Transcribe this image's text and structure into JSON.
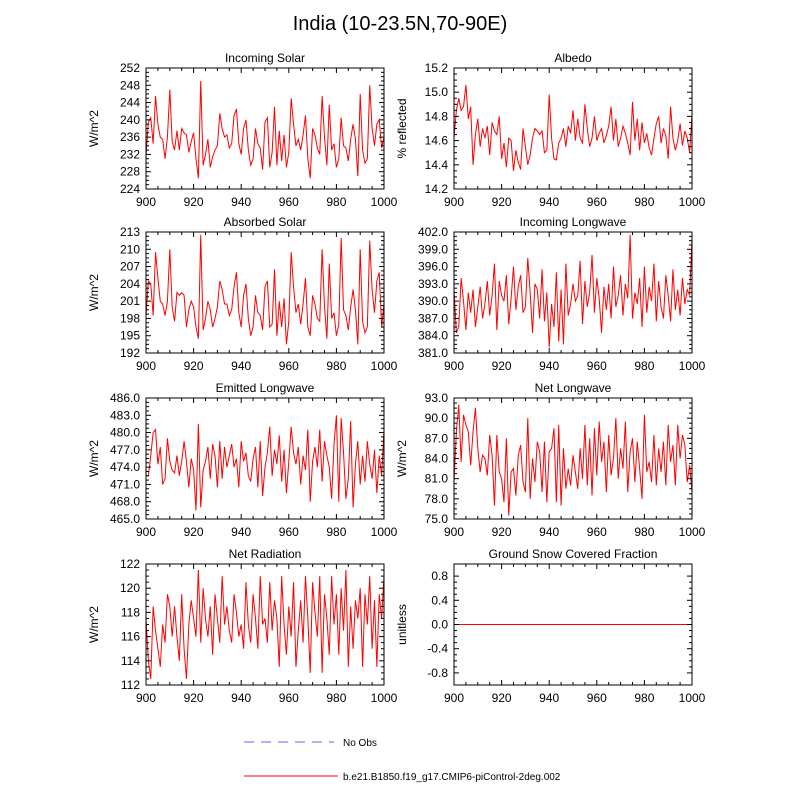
{
  "title": "India (10-23.5N,70-90E)",
  "legend": {
    "obs_label": "No Obs",
    "model_label": "b.e21.B1850.f19_g17.CMIP6-piControl-2deg.002",
    "obs_color": "#9999ee",
    "model_color": "#ff0000"
  },
  "chart_data": [
    {
      "type": "line",
      "title": "Incoming Solar",
      "ylabel": "W/m^2",
      "xlim": [
        900,
        1000
      ],
      "ylim": [
        224,
        252
      ],
      "yticks": [
        "224",
        "228",
        "232",
        "236",
        "240",
        "244",
        "248",
        "252"
      ],
      "xticks": [
        "900",
        "920",
        "940",
        "960",
        "980",
        "1000"
      ],
      "x_start": 900,
      "values": [
        231.5,
        239.5,
        240.5,
        234.5,
        245.5,
        239.0,
        236.0,
        235.5,
        231.0,
        236.0,
        247.0,
        235.0,
        233.0,
        237.5,
        233.0,
        238.0,
        237.0,
        236.5,
        232.5,
        235.0,
        237.0,
        231.0,
        226.5,
        249.0,
        229.5,
        232.0,
        235.5,
        229.0,
        231.5,
        233.0,
        234.0,
        241.5,
        238.0,
        236.0,
        236.5,
        233.5,
        234.5,
        241.0,
        242.5,
        234.5,
        232.0,
        238.0,
        240.0,
        233.0,
        229.5,
        231.0,
        238.0,
        234.5,
        233.5,
        228.5,
        239.5,
        240.5,
        229.0,
        232.5,
        243.0,
        229.5,
        237.5,
        230.5,
        236.5,
        229.0,
        232.5,
        245.0,
        239.0,
        234.0,
        235.5,
        233.0,
        236.5,
        241.0,
        231.0,
        226.5,
        238.0,
        236.5,
        233.5,
        232.0,
        245.5,
        236.0,
        229.5,
        243.5,
        233.0,
        234.5,
        229.0,
        231.0,
        240.5,
        234.0,
        233.5,
        230.5,
        235.5,
        239.0,
        235.5,
        227.0,
        246.0,
        233.0,
        230.0,
        231.0,
        248.0,
        238.0,
        234.0,
        239.0,
        240.0,
        233.5,
        236.0
      ]
    },
    {
      "type": "line",
      "title": "Albedo",
      "ylabel": "% reflected",
      "xlim": [
        900,
        1000
      ],
      "ylim": [
        14.2,
        15.2
      ],
      "yticks": [
        "14.2",
        "14.4",
        "14.6",
        "14.8",
        "15.0",
        "15.2"
      ],
      "xticks": [
        "900",
        "920",
        "940",
        "960",
        "980",
        "1000"
      ],
      "x_start": 900,
      "values": [
        14.62,
        14.85,
        14.95,
        14.85,
        14.88,
        15.06,
        14.78,
        14.88,
        14.4,
        14.65,
        14.78,
        14.55,
        14.7,
        14.62,
        14.72,
        14.48,
        14.75,
        14.68,
        14.65,
        14.8,
        14.45,
        14.58,
        14.38,
        14.62,
        14.6,
        14.35,
        14.52,
        14.42,
        14.36,
        14.7,
        14.55,
        14.4,
        14.48,
        14.62,
        14.7,
        14.68,
        14.65,
        14.68,
        14.5,
        14.52,
        14.98,
        14.62,
        14.45,
        14.44,
        14.58,
        14.62,
        14.7,
        14.55,
        14.72,
        14.66,
        14.85,
        14.6,
        14.78,
        14.62,
        14.58,
        14.9,
        14.7,
        14.55,
        14.62,
        14.8,
        14.6,
        14.66,
        14.7,
        14.58,
        14.64,
        14.72,
        14.88,
        14.6,
        14.78,
        14.55,
        14.62,
        14.72,
        14.66,
        14.58,
        14.48,
        14.92,
        14.6,
        14.78,
        14.52,
        14.75,
        14.58,
        14.66,
        14.54,
        14.48,
        14.62,
        14.74,
        14.8,
        14.58,
        14.7,
        14.64,
        14.45,
        14.88,
        14.62,
        14.52,
        14.6,
        14.74,
        14.56,
        14.68,
        14.62,
        14.5,
        14.82
      ]
    },
    {
      "type": "line",
      "title": "Absorbed Solar",
      "ylabel": "W/m^2",
      "xlim": [
        900,
        1000
      ],
      "ylim": [
        192,
        213
      ],
      "yticks": [
        "192",
        "195",
        "198",
        "201",
        "204",
        "207",
        "210",
        "213"
      ],
      "xticks": [
        "900",
        "920",
        "940",
        "960",
        "980",
        "1000"
      ],
      "x_start": 900,
      "values": [
        198.5,
        204.5,
        204.0,
        198.5,
        209.5,
        205.0,
        201.0,
        200.5,
        198.5,
        201.0,
        210.0,
        200.0,
        197.5,
        202.5,
        202.0,
        202.5,
        202.0,
        196.5,
        199.5,
        201.0,
        200.0,
        196.5,
        194.5,
        212.5,
        196.0,
        198.0,
        201.0,
        199.5,
        196.5,
        198.0,
        200.0,
        204.5,
        203.0,
        200.5,
        200.5,
        198.5,
        199.5,
        203.5,
        206.0,
        199.0,
        196.5,
        202.0,
        204.0,
        198.0,
        195.0,
        196.5,
        202.0,
        199.0,
        198.5,
        196.0,
        203.5,
        204.5,
        196.5,
        197.0,
        206.5,
        195.0,
        201.0,
        196.5,
        201.5,
        193.5,
        197.5,
        209.5,
        203.5,
        199.0,
        200.5,
        197.0,
        200.5,
        205.0,
        196.5,
        195.0,
        202.0,
        200.5,
        198.0,
        197.5,
        210.0,
        200.0,
        194.5,
        207.5,
        198.0,
        199.0,
        195.0,
        197.0,
        212.0,
        199.5,
        198.5,
        196.0,
        200.0,
        203.0,
        199.5,
        193.5,
        210.0,
        197.5,
        195.5,
        196.5,
        211.5,
        203.0,
        199.0,
        204.5,
        206.0,
        196.5,
        200.5
      ]
    },
    {
      "type": "line",
      "title": "Incoming Longwave",
      "ylabel": "",
      "xlim": [
        900,
        1000
      ],
      "ylim": [
        381.0,
        402.0
      ],
      "yticks": [
        "381.0",
        "384.0",
        "387.0",
        "390.0",
        "393.0",
        "396.0",
        "399.0",
        "402.0"
      ],
      "xticks": [
        "900",
        "920",
        "940",
        "960",
        "980",
        "1000"
      ],
      "x_start": 900,
      "values": [
        392.0,
        384.5,
        385.5,
        394.0,
        390.0,
        385.0,
        391.5,
        388.0,
        392.0,
        385.5,
        389.0,
        392.5,
        387.0,
        389.5,
        393.5,
        387.5,
        391.0,
        396.5,
        385.0,
        393.5,
        391.0,
        390.0,
        394.5,
        386.0,
        390.5,
        396.0,
        388.5,
        392.5,
        394.5,
        388.0,
        389.0,
        397.5,
        391.5,
        384.5,
        393.0,
        392.0,
        387.0,
        395.5,
        386.5,
        391.5,
        382.0,
        389.5,
        385.5,
        395.0,
        383.0,
        392.0,
        382.5,
        396.5,
        387.5,
        389.5,
        393.0,
        390.0,
        391.0,
        397.0,
        386.0,
        393.5,
        389.0,
        391.5,
        398.0,
        388.0,
        394.0,
        390.5,
        384.5,
        392.5,
        388.5,
        393.0,
        387.0,
        396.0,
        389.0,
        391.0,
        394.5,
        387.5,
        393.0,
        390.5,
        401.5,
        387.0,
        391.5,
        389.5,
        394.0,
        385.5,
        396.0,
        388.0,
        392.5,
        390.0,
        396.5,
        386.5,
        393.5,
        389.0,
        387.0,
        394.5,
        391.0,
        386.5,
        395.5,
        388.5,
        392.0,
        387.5,
        394.0,
        389.5,
        392.0,
        391.0,
        401.0
      ]
    },
    {
      "type": "line",
      "title": "Emitted Longwave",
      "ylabel": "W/m^2",
      "xlim": [
        900,
        1000
      ],
      "ylim": [
        465.0,
        486.0
      ],
      "yticks": [
        "465.0",
        "468.0",
        "471.0",
        "474.0",
        "477.0",
        "480.0",
        "483.0",
        "486.0"
      ],
      "xticks": [
        "900",
        "920",
        "940",
        "960",
        "980",
        "1000"
      ],
      "x_start": 900,
      "values": [
        472.5,
        472.5,
        476.0,
        480.0,
        480.5,
        474.5,
        477.5,
        471.0,
        472.0,
        479.0,
        475.0,
        473.5,
        473.0,
        476.0,
        472.5,
        475.0,
        478.5,
        475.0,
        470.5,
        475.5,
        473.5,
        466.5,
        481.5,
        467.0,
        473.5,
        475.0,
        477.5,
        472.0,
        478.0,
        476.0,
        470.5,
        478.5,
        472.0,
        477.5,
        474.0,
        476.0,
        478.0,
        474.0,
        475.5,
        470.5,
        478.5,
        475.0,
        476.5,
        472.5,
        471.5,
        475.5,
        477.5,
        470.5,
        478.5,
        469.0,
        474.0,
        476.5,
        481.0,
        472.5,
        477.0,
        474.5,
        479.5,
        471.5,
        477.0,
        469.5,
        475.0,
        481.0,
        476.5,
        474.5,
        477.5,
        471.0,
        476.0,
        473.5,
        480.5,
        468.0,
        475.0,
        477.5,
        474.0,
        480.5,
        471.5,
        478.5,
        476.0,
        474.0,
        468.5,
        478.0,
        483.0,
        468.0,
        482.5,
        476.5,
        468.5,
        472.0,
        482.0,
        467.0,
        474.5,
        478.5,
        471.0,
        476.0,
        471.5,
        478.5,
        474.5,
        472.0,
        477.0,
        469.5,
        476.0,
        472.5,
        480.5
      ]
    },
    {
      "type": "line",
      "title": "Net Longwave",
      "ylabel": "W/m^2",
      "xlim": [
        900,
        1000
      ],
      "ylim": [
        75.0,
        93.0
      ],
      "yticks": [
        "75.0",
        "78.0",
        "81.0",
        "84.0",
        "87.0",
        "90.0",
        "93.0"
      ],
      "xticks": [
        "900",
        "920",
        "940",
        "960",
        "980",
        "1000"
      ],
      "x_start": 900,
      "values": [
        80.5,
        88.0,
        92.0,
        83.5,
        90.5,
        89.0,
        88.0,
        83.0,
        88.0,
        91.5,
        85.5,
        82.0,
        84.5,
        84.0,
        81.5,
        87.5,
        84.5,
        77.0,
        87.5,
        82.0,
        81.0,
        77.5,
        87.0,
        75.5,
        82.0,
        82.5,
        78.5,
        84.5,
        86.0,
        80.5,
        79.0,
        90.0,
        78.0,
        84.0,
        80.5,
        86.5,
        85.0,
        79.0,
        86.5,
        77.5,
        85.0,
        85.5,
        88.5,
        77.5,
        89.0,
        77.0,
        85.5,
        79.5,
        82.5,
        80.0,
        84.5,
        82.0,
        79.5,
        85.5,
        81.0,
        89.0,
        80.0,
        87.0,
        78.5,
        88.5,
        81.5,
        89.5,
        83.5,
        86.5,
        79.0,
        87.5,
        81.5,
        84.0,
        90.0,
        81.0,
        85.5,
        82.5,
        89.5,
        79.0,
        85.0,
        87.0,
        80.5,
        86.5,
        82.5,
        78.0,
        90.5,
        82.0,
        83.5,
        80.5,
        87.5,
        80.0,
        85.5,
        82.0,
        86.5,
        80.0,
        89.0,
        83.5,
        86.0,
        80.0,
        89.0,
        84.0,
        87.5,
        86.0,
        80.5,
        83.0,
        79.0
      ]
    },
    {
      "type": "line",
      "title": "Net Radiation",
      "ylabel": "W/m^2",
      "xlim": [
        900,
        1000
      ],
      "ylim": [
        112,
        122
      ],
      "yticks": [
        "112",
        "114",
        "116",
        "118",
        "120",
        "122"
      ],
      "xticks": [
        "900",
        "920",
        "940",
        "960",
        "980",
        "1000"
      ],
      "x_start": 900,
      "values": [
        117.5,
        114.0,
        112.5,
        118.5,
        116.5,
        115.0,
        113.5,
        117.0,
        115.5,
        119.5,
        118.5,
        116.0,
        118.5,
        116.0,
        114.0,
        119.5,
        115.0,
        112.5,
        117.0,
        119.0,
        117.5,
        116.0,
        121.5,
        115.5,
        120.0,
        117.5,
        116.0,
        118.5,
        114.5,
        119.5,
        117.5,
        115.5,
        121.0,
        117.0,
        118.5,
        116.5,
        115.5,
        119.5,
        118.0,
        116.0,
        117.0,
        115.0,
        120.5,
        117.0,
        115.5,
        119.5,
        117.5,
        115.0,
        121.0,
        117.0,
        117.5,
        115.5,
        120.5,
        116.5,
        119.0,
        117.5,
        113.5,
        121.0,
        117.0,
        114.5,
        118.5,
        116.0,
        120.5,
        113.5,
        116.5,
        119.0,
        115.5,
        121.0,
        117.5,
        113.0,
        120.5,
        118.0,
        116.0,
        121.0,
        113.0,
        119.5,
        117.5,
        114.5,
        121.0,
        117.0,
        119.5,
        114.5,
        120.0,
        116.5,
        121.5,
        113.5,
        118.5,
        115.0,
        119.0,
        117.5,
        120.0,
        113.5,
        119.5,
        117.0,
        121.0,
        115.0,
        119.0,
        113.5,
        119.5,
        117.5,
        121.0
      ]
    },
    {
      "type": "line",
      "title": "Ground Snow Covered Fraction",
      "ylabel": "unitless",
      "xlim": [
        900,
        1000
      ],
      "ylim": [
        -1.0,
        1.0
      ],
      "yticks": [
        "-0.8",
        "-0.4",
        "0.0",
        "0.4",
        "0.8"
      ],
      "ytick_values": [
        -0.8,
        -0.4,
        0.0,
        0.4,
        0.8
      ],
      "xticks": [
        "900",
        "920",
        "940",
        "960",
        "980",
        "1000"
      ],
      "x_start": 900,
      "constant": 0.0
    }
  ]
}
